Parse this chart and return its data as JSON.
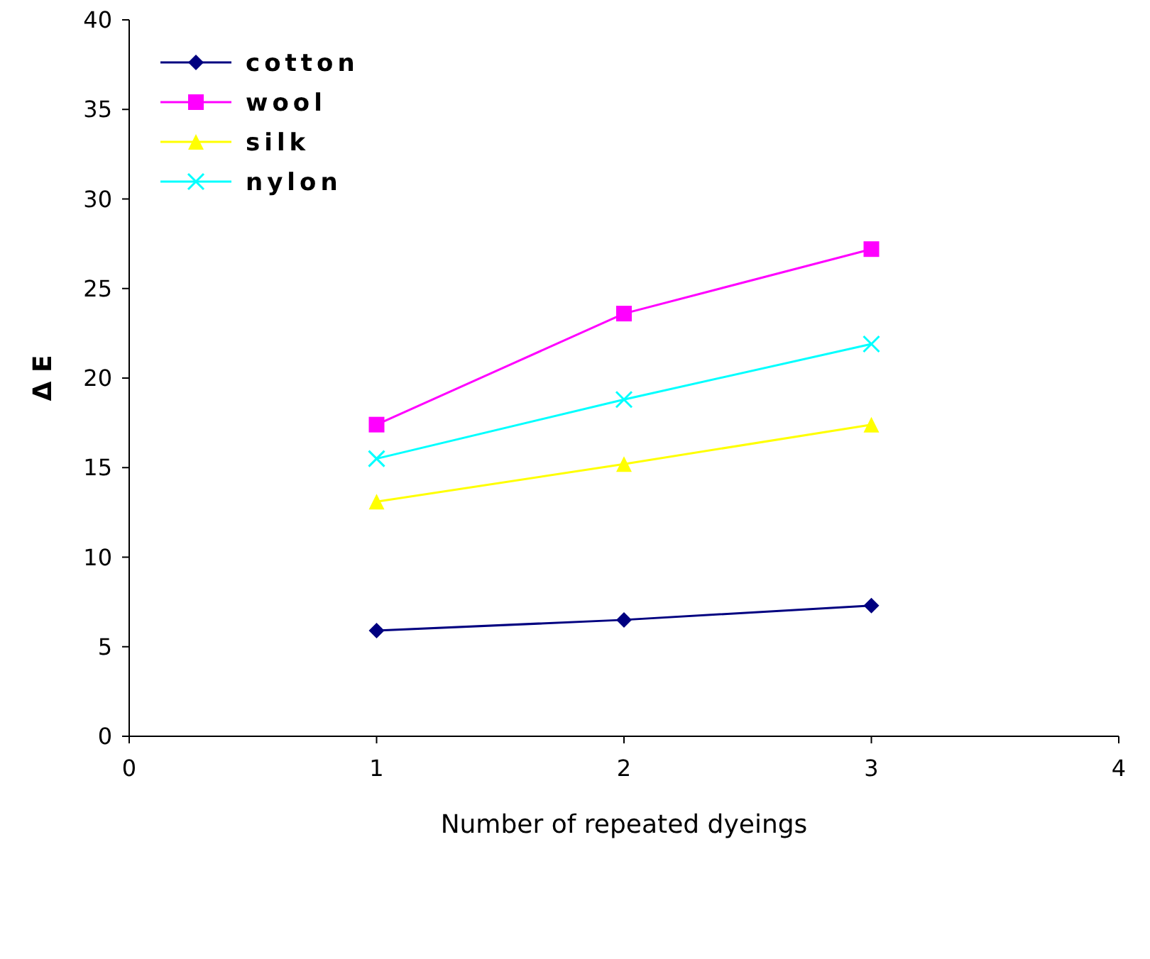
{
  "chart_data": {
    "type": "line",
    "xlabel": "Number of repeated dyeings",
    "ylabel": "Δ E",
    "x": [
      1,
      2,
      3
    ],
    "xlim": [
      0,
      4
    ],
    "xticks": [
      0,
      1,
      2,
      3,
      4
    ],
    "ylim": [
      0,
      40
    ],
    "yticks": [
      0,
      5,
      10,
      15,
      20,
      25,
      30,
      35,
      40
    ],
    "grid": false,
    "legend": "top left",
    "line_style": "solid",
    "series": [
      {
        "name": "cotton",
        "color": "#000080",
        "marker": "diamond",
        "values": [
          5.9,
          6.5,
          7.3
        ]
      },
      {
        "name": "wool",
        "color": "#ff00ff",
        "marker": "square",
        "values": [
          17.4,
          23.6,
          27.2
        ]
      },
      {
        "name": "silk",
        "color": "#ffff00",
        "marker": "triangle",
        "values": [
          13.1,
          15.2,
          17.4
        ]
      },
      {
        "name": "nylon",
        "color": "#00ffff",
        "marker": "cross",
        "values": [
          15.5,
          18.8,
          21.9
        ]
      }
    ]
  }
}
